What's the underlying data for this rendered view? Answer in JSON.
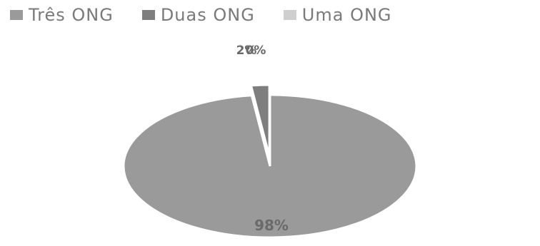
{
  "chart_data": {
    "type": "pie",
    "categories": [
      "Três ONG",
      "Duas ONG",
      "Uma ONG"
    ],
    "values": [
      98,
      2,
      0
    ],
    "data_labels": [
      "98%",
      "2%",
      "0%"
    ],
    "legend_position": "top",
    "colors": [
      "#9a9a9a",
      "#7e7e7e",
      "#cfcfcf"
    ]
  },
  "legend": {
    "items": [
      {
        "label": "Três ONG",
        "color": "#9a9a9a"
      },
      {
        "label": "Duas ONG",
        "color": "#7e7e7e"
      },
      {
        "label": "Uma ONG",
        "color": "#cfcfcf"
      }
    ]
  }
}
